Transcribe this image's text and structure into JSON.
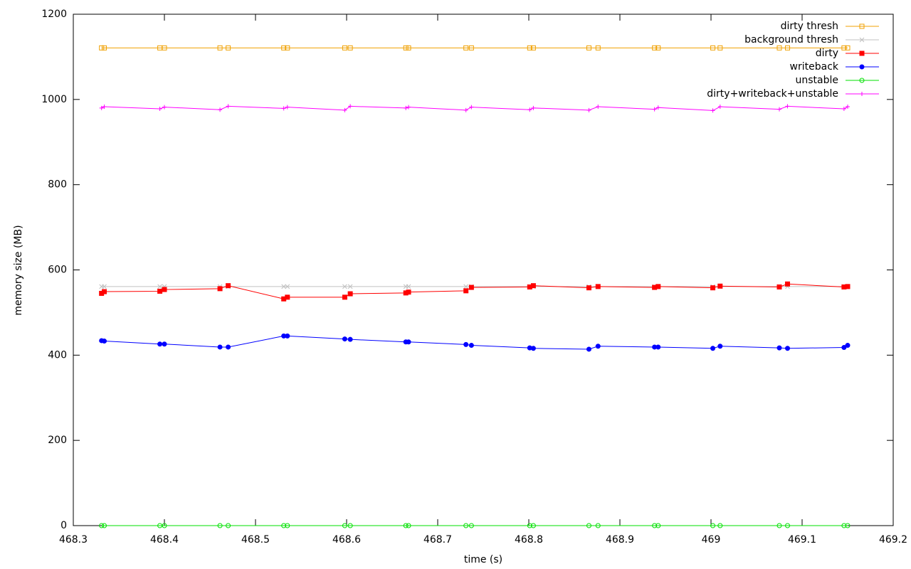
{
  "chart_data": {
    "type": "line",
    "xlabel": "time (s)",
    "ylabel": "memory size (MB)",
    "x": [
      468.331,
      468.334,
      468.395,
      468.4,
      468.461,
      468.47,
      468.531,
      468.535,
      468.598,
      468.604,
      468.665,
      468.668,
      468.731,
      468.737,
      468.801,
      468.805,
      468.866,
      468.876,
      468.938,
      468.942,
      469.002,
      469.01,
      469.075,
      469.084,
      469.146,
      469.15
    ],
    "series": [
      {
        "name": "dirty thresh",
        "color": "#f0a000",
        "marker": "square-open",
        "values": [
          1121,
          1121,
          1121,
          1121,
          1121,
          1121,
          1121,
          1121,
          1121,
          1121,
          1121,
          1121,
          1121,
          1121,
          1121,
          1121,
          1121,
          1121,
          1121,
          1121,
          1121,
          1121,
          1121,
          1121,
          1121,
          1121
        ]
      },
      {
        "name": "background thresh",
        "color": "#c0c0c0",
        "marker": "cross",
        "values": [
          561,
          561,
          561,
          561,
          561,
          561,
          561,
          561,
          561,
          561,
          561,
          561,
          561,
          561,
          561,
          561,
          561,
          561,
          561,
          561,
          561,
          561,
          561,
          561,
          561,
          561
        ]
      },
      {
        "name": "dirty",
        "color": "#ff0000",
        "marker": "square",
        "values": [
          545,
          549,
          550,
          554,
          556,
          563,
          532,
          536,
          536,
          544,
          546,
          548,
          551,
          559,
          560,
          563,
          558,
          561,
          559,
          561,
          558,
          562,
          560,
          567,
          560,
          561
        ]
      },
      {
        "name": "writeback",
        "color": "#0000ff",
        "marker": "circle",
        "values": [
          434,
          433,
          426,
          426,
          419,
          419,
          445,
          445,
          438,
          437,
          431,
          431,
          425,
          423,
          417,
          416,
          414,
          421,
          419,
          419,
          416,
          421,
          417,
          416,
          418,
          423
        ]
      },
      {
        "name": "unstable",
        "color": "#00e000",
        "marker": "circle-open",
        "values": [
          0,
          0,
          0,
          0,
          0,
          0,
          0,
          0,
          0,
          0,
          0,
          0,
          0,
          0,
          0,
          0,
          0,
          0,
          0,
          0,
          0,
          0,
          0,
          0,
          0,
          0
        ]
      },
      {
        "name": "dirty+writeback+unstable",
        "color": "#ff00ff",
        "marker": "plus",
        "values": [
          980,
          983,
          978,
          982,
          976,
          984,
          979,
          982,
          975,
          984,
          980,
          982,
          975,
          982,
          976,
          980,
          975,
          983,
          977,
          981,
          974,
          983,
          977,
          984,
          978,
          983
        ]
      }
    ],
    "xlim": [
      468.3,
      469.2
    ],
    "xticks": [
      468.3,
      468.4,
      468.5,
      468.6,
      468.7,
      468.8,
      468.9,
      469,
      469.1,
      469.2
    ],
    "ylim": [
      0,
      1200
    ],
    "yticks": [
      0,
      200,
      400,
      600,
      800,
      1000,
      1200
    ],
    "legend": "top-right",
    "grid": false
  }
}
